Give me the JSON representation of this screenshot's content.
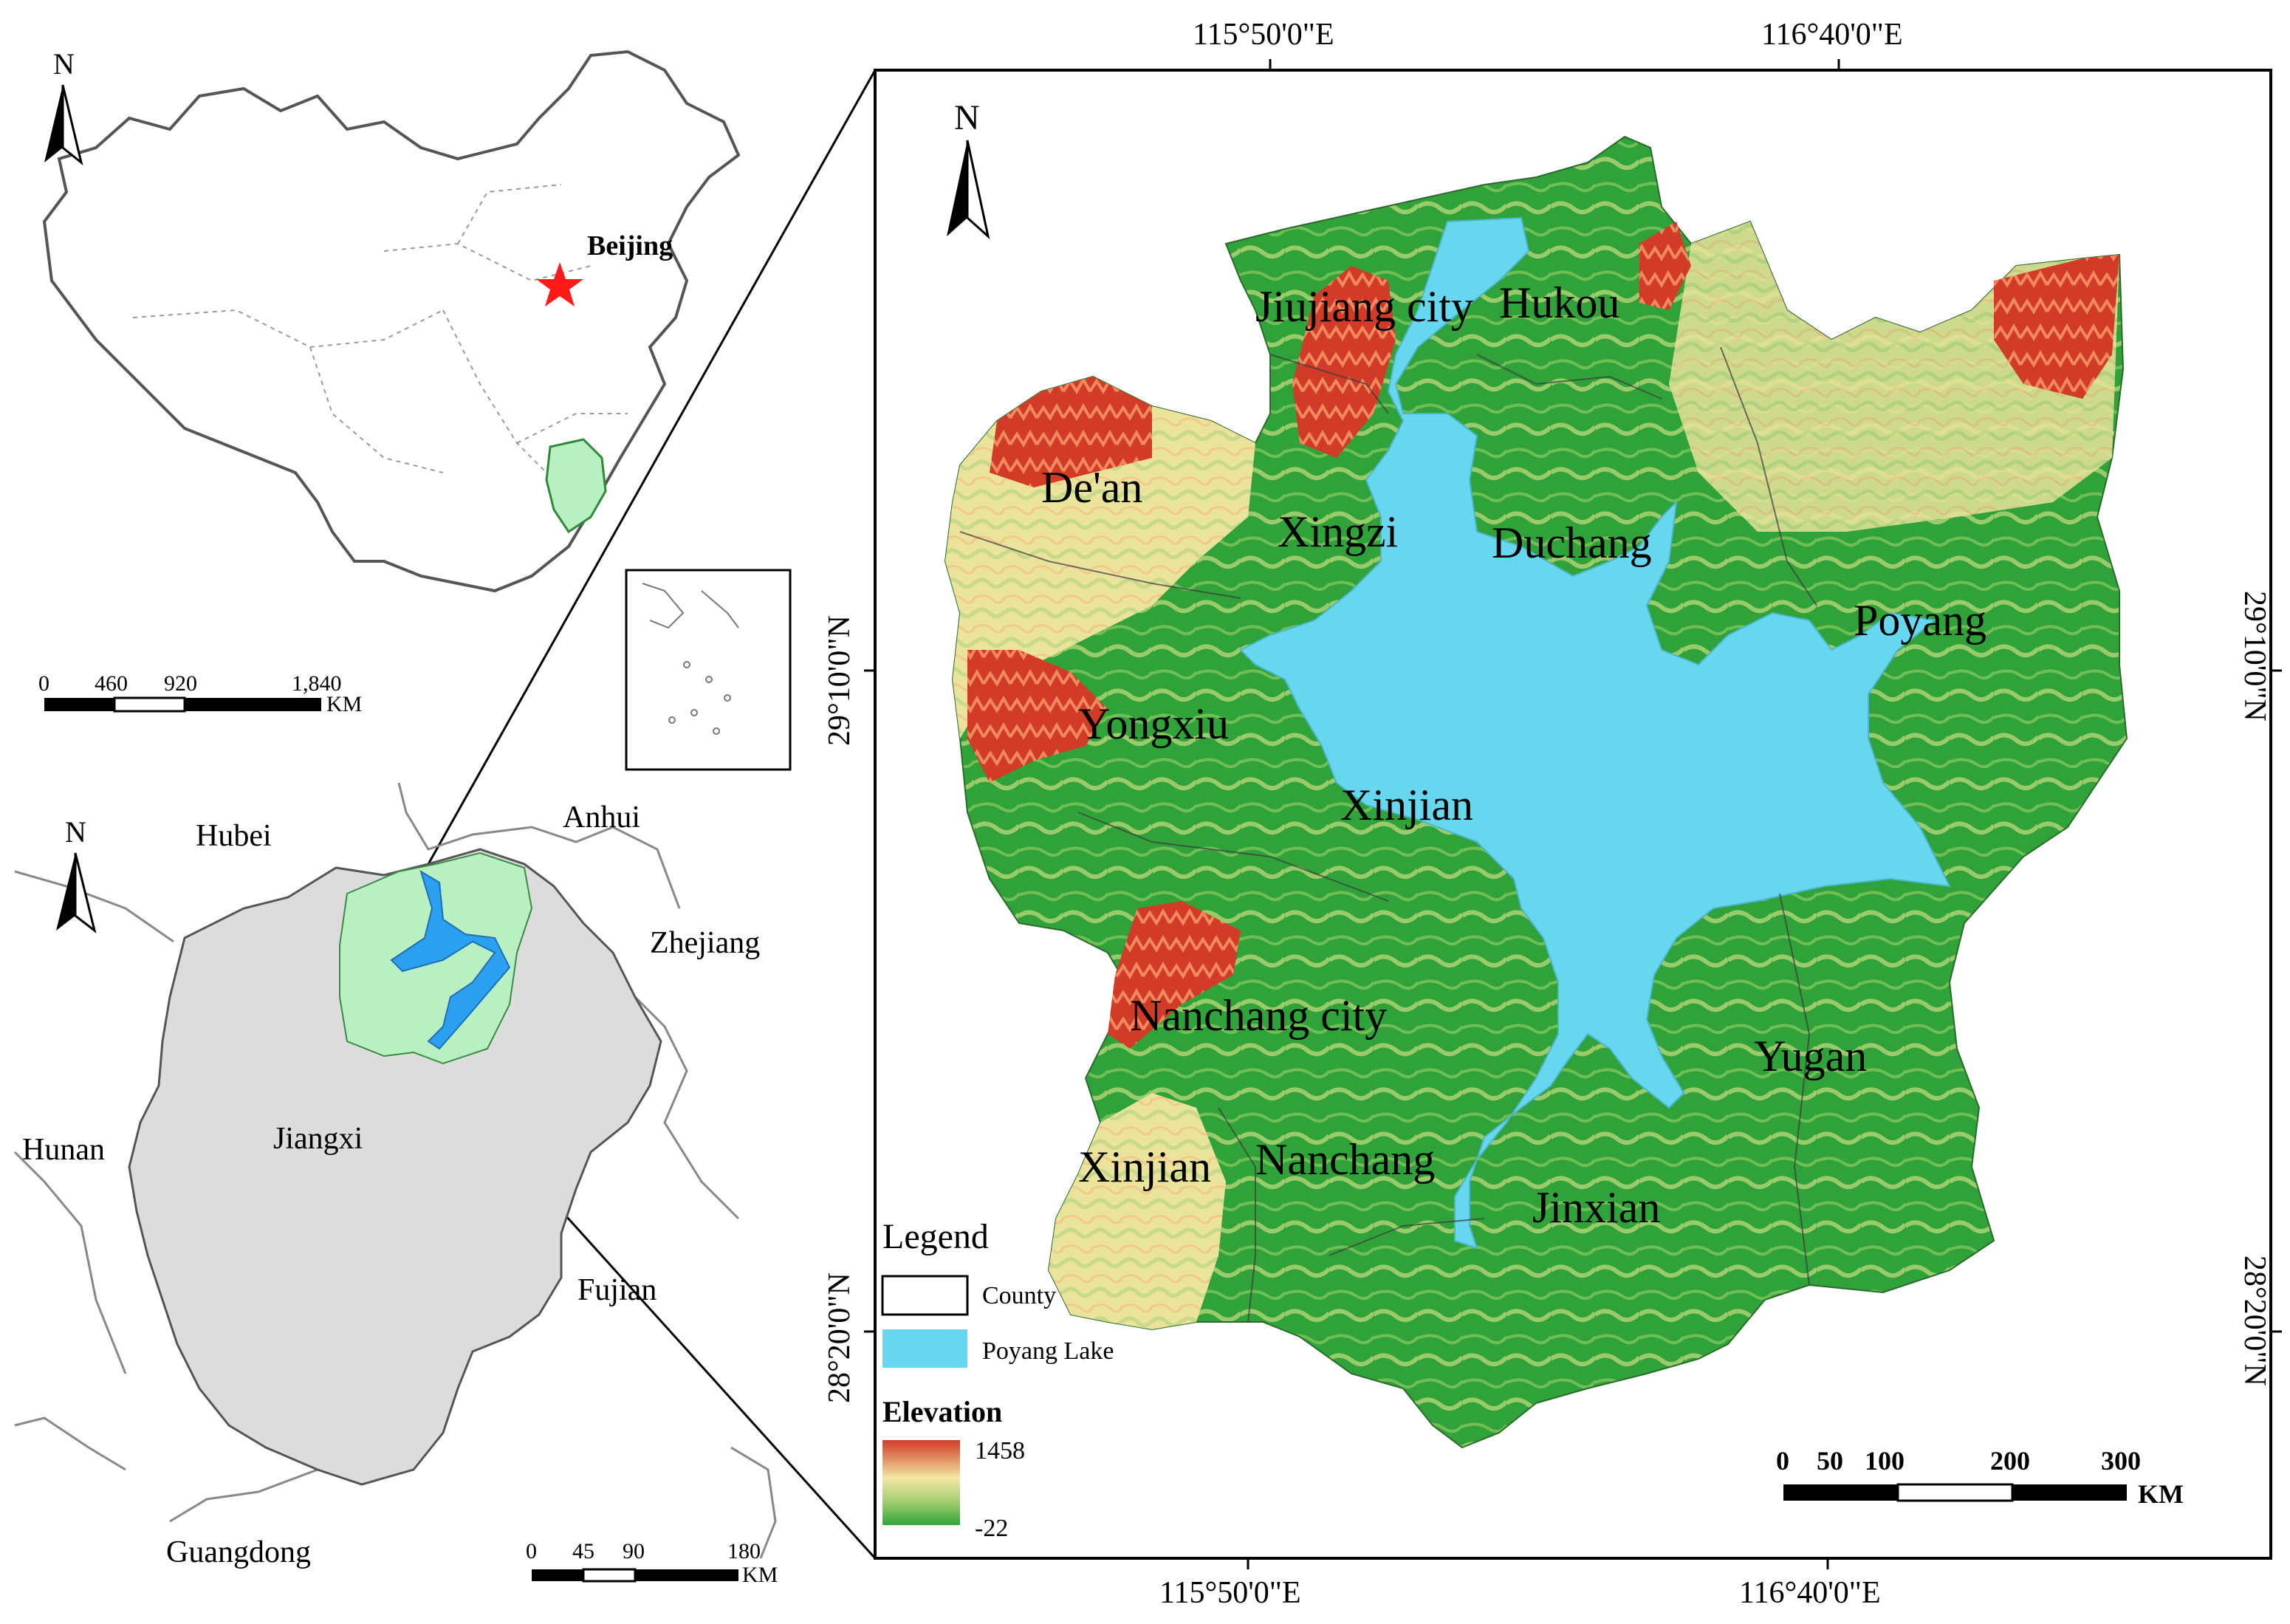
{
  "colors": {
    "china_land": "#ffffff",
    "jiangxi_fill": "#dcdcdc",
    "study_area_fill": "#b9f0c2",
    "lake": "#67d7f0",
    "lake_inset": "#2b9ff0",
    "forest_green": "#2fa33a",
    "low_green": "#9acb6a",
    "mid_yellow": "#f2e8a4",
    "high_red": "#d23b27",
    "beijing_star": "#ff1a1a"
  },
  "north_arrow_label": "N",
  "china_map": {
    "beijing_label": "Beijing",
    "scalebar": {
      "ticks": [
        "0",
        "460",
        "920",
        "1,840"
      ],
      "unit": "KM"
    }
  },
  "jiangxi_map": {
    "provinces": {
      "hubei": "Hubei",
      "anhui": "Anhui",
      "zhejiang": "Zhejiang",
      "hunan": "Hunan",
      "jiangxi": "Jiangxi",
      "fujian": "Fujian",
      "guangdong": "Guangdong"
    },
    "scalebar": {
      "ticks": [
        "0",
        "45",
        "90",
        "180"
      ],
      "unit": "KM"
    }
  },
  "main_map": {
    "top_coords": [
      "115°50'0\"E",
      "116°40'0\"E"
    ],
    "bottom_coords": [
      "115°50'0\"E",
      "116°40'0\"E"
    ],
    "left_coords": [
      "29°10'0\"N",
      "28°20'0\"N"
    ],
    "right_coords": [
      "29°10'0\"N",
      "28°20'0\"N"
    ],
    "counties": {
      "jiujiang": "Jiujiang city",
      "hukou": "Hukou",
      "dean": "De'an",
      "xingzi": "Xingzi",
      "duchang": "Duchang",
      "poyang": "Poyang",
      "yongxiu": "Yongxiu",
      "xinjian_n": "Xinjian",
      "nanchang_city": "Nanchang city",
      "yugan": "Yugan",
      "xinjian_s": "Xinjian",
      "nanchang": "Nanchang",
      "jinxian": "Jinxian"
    },
    "legend": {
      "title": "Legend",
      "county": "County",
      "lake": "Poyang Lake",
      "elevation_title": "Elevation",
      "elev_max": "1458",
      "elev_min": "-22"
    },
    "scalebar": {
      "ticks": [
        "0",
        "50",
        "100",
        "200",
        "300"
      ],
      "unit": "KM"
    }
  }
}
